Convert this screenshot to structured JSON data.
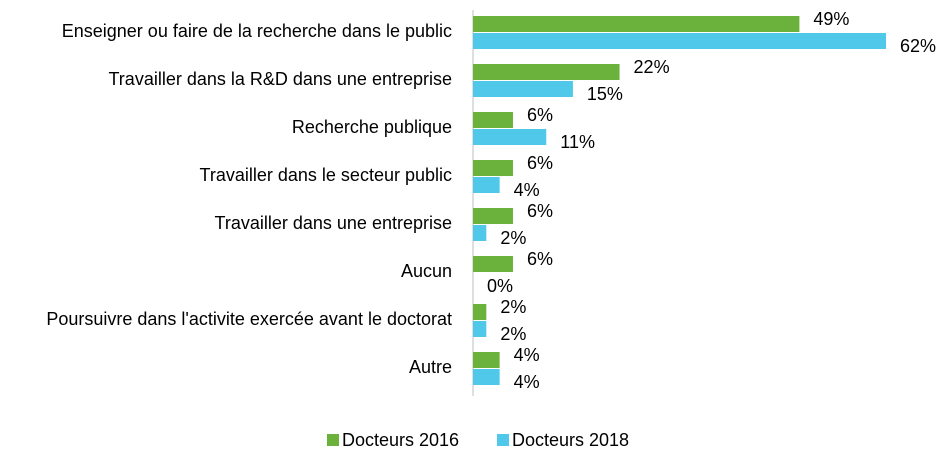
{
  "chart_data": {
    "type": "hbar",
    "categories": [
      "Enseigner ou faire de la recherche dans le public",
      "Travailler dans la R&D dans  une entreprise",
      "Recherche publique",
      "Travailler dans le secteur public",
      "Travailler dans une entreprise",
      "Aucun",
      "Poursuivre dans l'activite exercée avant le doctorat",
      "Autre"
    ],
    "series": [
      {
        "name": "Docteurs 2016",
        "color": "#6bb23c",
        "values": [
          49,
          22,
          6,
          6,
          6,
          6,
          2,
          4
        ],
        "value_labels": [
          "49%",
          "22%",
          "6%",
          "6%",
          "6%",
          "6%",
          "2%",
          "4%"
        ]
      },
      {
        "name": "Docteurs 2018",
        "color": "#4fc8ea",
        "values": [
          62,
          15,
          11,
          4,
          2,
          0,
          2,
          4
        ],
        "value_labels": [
          "62%",
          "15%",
          "11%",
          "4%",
          "2%",
          "0%",
          "2%",
          "4%"
        ]
      }
    ],
    "legend": "bottom"
  }
}
